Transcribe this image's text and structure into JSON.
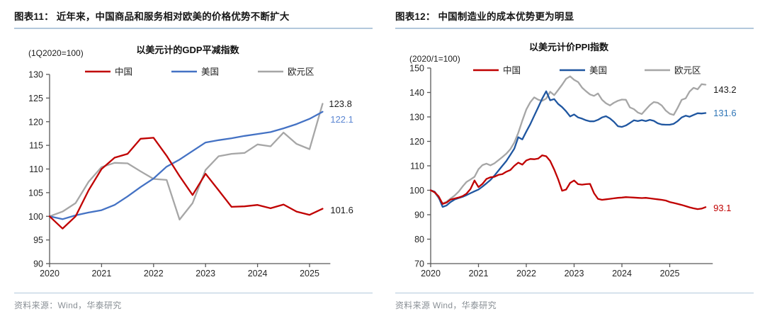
{
  "chart_data": [
    {
      "type": "line",
      "header": "图表11：  近年来，中国商品和服务相对欧美的价格优势不断扩大",
      "title": "以美元计的GDP平减指数",
      "unit_label": "(1Q2020=100)",
      "source": "资料来源：Wind，华泰研究",
      "grid": false,
      "legend_position": "top",
      "ylim": [
        90,
        130
      ],
      "y_step": 5,
      "x_tick_labels": [
        "2020",
        "2021",
        "2022",
        "2023",
        "2024",
        "2025"
      ],
      "x_start": 2020,
      "x_end": 2025.4,
      "legend": [
        {
          "label": "中国",
          "color": "#c00000"
        },
        {
          "label": "美国",
          "color": "#4472c4"
        },
        {
          "label": "欧元区",
          "color": "#a6a6a6"
        }
      ],
      "series": [
        {
          "name": "欧元区",
          "color": "#a6a6a6",
          "t0": 2020,
          "dt": 0.25,
          "values": [
            100,
            101.0,
            102.8,
            107.3,
            110.4,
            111.3,
            111.2,
            109.5,
            107.9,
            107.7,
            99.3,
            102.8,
            109.8,
            112.7,
            113.2,
            113.4,
            115.2,
            114.8,
            117.7,
            115.3,
            114.2,
            123.8
          ],
          "end_label": {
            "text": "123.8",
            "color": "#1d1d1d"
          }
        },
        {
          "name": "美国",
          "color": "#4472c4",
          "t0": 2020,
          "dt": 0.25,
          "values": [
            100,
            99.4,
            100.2,
            100.8,
            101.3,
            102.4,
            104.2,
            106.2,
            108.0,
            110.5,
            112.0,
            113.8,
            115.6,
            116.1,
            116.5,
            117.0,
            117.4,
            117.8,
            118.6,
            119.5,
            120.6,
            122.1
          ],
          "end_label": {
            "text": "122.1",
            "color": "#5b86d2"
          }
        },
        {
          "name": "中国",
          "color": "#c00000",
          "t0": 2020,
          "dt": 0.25,
          "values": [
            100,
            97.4,
            100.0,
            105.5,
            110.0,
            112.4,
            113.2,
            116.4,
            116.6,
            112.8,
            108.5,
            104.5,
            109.0,
            105.5,
            102.0,
            102.1,
            102.4,
            101.7,
            102.5,
            101.0,
            100.3,
            101.6
          ],
          "end_label": {
            "text": "101.6",
            "color": "#1d1d1d"
          }
        }
      ]
    },
    {
      "type": "line",
      "header": "图表12：  中国制造业的成本优势更为明显",
      "title": "以美元计价PPI指数",
      "unit_label": "(2020/1=100)",
      "source": "资料来源 Wind，华泰研究",
      "grid": false,
      "legend_position": "top",
      "ylim": [
        70,
        150
      ],
      "y_step": 10,
      "x_tick_labels": [
        "2020",
        "2021",
        "2022",
        "2023",
        "2024",
        "2025"
      ],
      "x_start": 2020,
      "x_end": 2025.9,
      "legend": [
        {
          "label": "中国",
          "color": "#c00000"
        },
        {
          "label": "美国",
          "color": "#1f56a0"
        },
        {
          "label": "欧元区",
          "color": "#a6a6a6"
        }
      ],
      "series": [
        {
          "name": "欧元区",
          "color": "#a6a6a6",
          "t0": 2020,
          "dt": 0.0833333,
          "values": [
            100,
            99.1,
            96.8,
            94.6,
            95.3,
            96.6,
            97.8,
            99.4,
            101.5,
            103.4,
            104.4,
            105.5,
            108.6,
            110.3,
            110.9,
            110.2,
            111.0,
            112.3,
            113.6,
            115.0,
            116.8,
            119.5,
            123.5,
            128.5,
            133.0,
            136.0,
            138.0,
            137.0,
            136.6,
            137.5,
            140.3,
            138.9,
            141.0,
            143.2,
            145.6,
            146.6,
            145.2,
            144.3,
            142.0,
            140.5,
            139.2,
            138.6,
            139.6,
            137.0,
            135.6,
            134.7,
            135.8,
            136.6,
            137.1,
            137.0,
            133.9,
            133.2,
            131.8,
            131.2,
            133.0,
            134.8,
            136.1,
            135.8,
            134.7,
            132.6,
            131.3,
            130.8,
            133.7,
            137.0,
            137.6,
            140.4,
            141.9,
            141.3,
            143.4,
            143.2
          ],
          "end_label": {
            "text": "143.2",
            "color": "#1d1d1d"
          }
        },
        {
          "name": "美国",
          "color": "#1f56a0",
          "t0": 2020,
          "dt": 0.0833333,
          "values": [
            100,
            99.4,
            97.2,
            93.2,
            93.8,
            95.2,
            96.2,
            96.8,
            97.3,
            98.0,
            98.8,
            99.6,
            100.3,
            101.5,
            102.8,
            104.2,
            106.0,
            108.0,
            110.0,
            112.0,
            114.5,
            117.0,
            121.7,
            120.8,
            124.0,
            127.0,
            130.5,
            134.0,
            137.5,
            140.5,
            136.8,
            137.3,
            135.3,
            134.0,
            132.3,
            130.2,
            131.0,
            129.8,
            129.3,
            128.6,
            128.2,
            128.2,
            128.8,
            129.8,
            130.3,
            129.4,
            128.0,
            126.2,
            125.9,
            126.5,
            127.5,
            128.6,
            128.3,
            128.7,
            128.3,
            128.8,
            128.4,
            127.4,
            126.9,
            126.8,
            126.8,
            127.2,
            128.3,
            129.8,
            130.5,
            130.1,
            130.8,
            131.5,
            131.4,
            131.6
          ],
          "end_label": {
            "text": "131.6",
            "color": "#2e75b6"
          }
        },
        {
          "name": "中国",
          "color": "#c00000",
          "t0": 2020,
          "dt": 0.0833333,
          "values": [
            100,
            99.2,
            97.5,
            94.4,
            95.0,
            96.2,
            96.6,
            97.0,
            97.6,
            98.6,
            100.5,
            104.0,
            101.3,
            102.6,
            104.6,
            105.3,
            105.5,
            106.3,
            106.6,
            107.6,
            108.3,
            110.0,
            111.3,
            110.5,
            112.2,
            112.8,
            112.7,
            113.0,
            114.3,
            113.9,
            112.0,
            108.5,
            104.5,
            99.8,
            100.3,
            103.0,
            104.0,
            102.5,
            102.3,
            102.5,
            102.6,
            98.8,
            96.5,
            96.1,
            96.3,
            96.5,
            96.7,
            96.9,
            97.0,
            97.2,
            97.1,
            97.0,
            96.9,
            96.8,
            96.9,
            96.7,
            96.5,
            96.3,
            96.1,
            95.8,
            95.2,
            94.8,
            94.4,
            94.0,
            93.5,
            93.0,
            92.6,
            92.3,
            92.5,
            93.1
          ],
          "end_label": {
            "text": "93.1",
            "color": "#c00000"
          }
        }
      ]
    }
  ]
}
